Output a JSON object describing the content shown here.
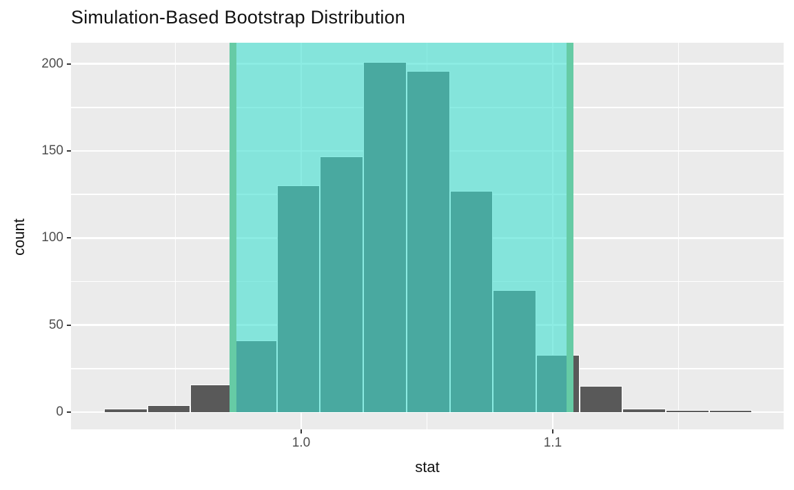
{
  "figure": {
    "title": "Simulation-Based Bootstrap Distribution"
  },
  "chart_data": {
    "type": "bar",
    "subtype": "histogram",
    "title": "Simulation-Based Bootstrap Distribution",
    "xlabel": "stat",
    "ylabel": "count",
    "grid": true,
    "legend": false,
    "xlim": [
      0.9085,
      1.1918
    ],
    "ylim": [
      -9.9,
      212.1
    ],
    "x_ticks": [
      {
        "value": 1.0,
        "label": "1.0"
      },
      {
        "value": 1.1,
        "label": "1.1"
      }
    ],
    "x_minor_ticks": [
      0.95,
      1.05,
      1.15
    ],
    "y_ticks": [
      {
        "value": 0,
        "label": "0"
      },
      {
        "value": 50,
        "label": "50"
      },
      {
        "value": 100,
        "label": "100"
      },
      {
        "value": 150,
        "label": "150"
      },
      {
        "value": 200,
        "label": "200"
      }
    ],
    "y_minor_ticks": [
      25,
      75,
      125,
      175
    ],
    "bins": {
      "start": 0.92164,
      "bin_width": 0.017178,
      "counts": [
        2,
        4,
        16,
        41,
        130,
        147,
        201,
        196,
        127,
        70,
        33,
        15,
        2,
        1,
        1
      ]
    },
    "confidence_interval": {
      "lower": 0.973,
      "upper": 1.107
    },
    "colors": {
      "panel_background": "#ebebeb",
      "gridline": "#ffffff",
      "bar_fill": "#595959",
      "bar_stroke": "#ffffff",
      "ci_shade_fill": "#40e0d0",
      "ci_shade_alpha": 0.6,
      "ci_line": "#66cba5",
      "tick_mark": "#333333",
      "tick_label": "#4d4d4d",
      "text": "#111111"
    }
  }
}
